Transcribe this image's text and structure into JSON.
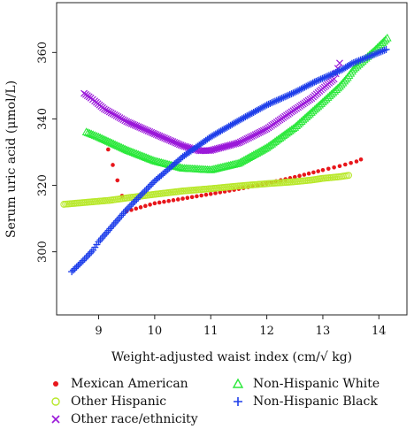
{
  "chart_data": {
    "type": "scatter",
    "xlabel": "Weight-adjusted waist index (cm/√ kg)",
    "ylabel": "Serum uric acid (μmol/L)",
    "xlim": [
      8.25,
      14.5
    ],
    "ylim": [
      281,
      375
    ],
    "x_ticks": [
      9,
      10,
      11,
      12,
      13,
      14
    ],
    "y_ticks": [
      300,
      320,
      340,
      360
    ],
    "grid": false,
    "legend_position": "bottom",
    "series": [
      {
        "name": "Mexican American",
        "color": "#e8161b",
        "marker": "dot",
        "points": [
          [
            9.17,
            330.8
          ],
          [
            9.5,
            312.2
          ],
          [
            10,
            314.6
          ],
          [
            10.5,
            316.0
          ],
          [
            11,
            317.4
          ],
          [
            11.5,
            318.9
          ],
          [
            12,
            320.6
          ],
          [
            12.5,
            322.5
          ],
          [
            13,
            324.6
          ],
          [
            13.3,
            325.8
          ],
          [
            13.6,
            327.2
          ],
          [
            13.68,
            327.8
          ]
        ]
      },
      {
        "name": "Other Hispanic",
        "color": "#b8e82a",
        "marker": "circle",
        "points": [
          [
            8.38,
            314.3
          ],
          [
            9.0,
            315.2
          ],
          [
            9.2,
            315.5
          ],
          [
            9.5,
            316.2
          ],
          [
            10,
            317.3
          ],
          [
            10.5,
            318.3
          ],
          [
            11,
            319.0
          ],
          [
            11.5,
            319.8
          ],
          [
            12,
            320.5
          ],
          [
            12.5,
            321.1
          ],
          [
            12.8,
            321.6
          ],
          [
            13.0,
            322.1
          ],
          [
            13.3,
            322.6
          ],
          [
            13.46,
            323.0
          ]
        ]
      },
      {
        "name": "Other race/ethnicity",
        "color": "#9a18d9",
        "marker": "x",
        "points": [
          [
            8.74,
            347.7
          ],
          [
            8.86,
            346.3
          ],
          [
            8.93,
            345.4
          ],
          [
            9.1,
            343.0
          ],
          [
            9.5,
            339.2
          ],
          [
            10,
            335.5
          ],
          [
            10.5,
            331.9
          ],
          [
            10.8,
            330.4
          ],
          [
            11,
            330.5
          ],
          [
            11.5,
            332.8
          ],
          [
            12,
            337.0
          ],
          [
            12.5,
            342.8
          ],
          [
            12.8,
            346.2
          ],
          [
            13.0,
            349.2
          ],
          [
            13.2,
            352.0
          ],
          [
            13.3,
            356.8
          ]
        ]
      },
      {
        "name": "Non-Hispanic White",
        "color": "#2ae83a",
        "marker": "triangle",
        "points": [
          [
            8.78,
            336.0
          ],
          [
            8.9,
            335.2
          ],
          [
            9.0,
            334.5
          ],
          [
            9.5,
            330.6
          ],
          [
            10,
            327.3
          ],
          [
            10.5,
            325.1
          ],
          [
            11,
            324.6
          ],
          [
            11.5,
            326.6
          ],
          [
            12,
            331.3
          ],
          [
            12.5,
            337.4
          ],
          [
            13,
            345.0
          ],
          [
            13.3,
            349.7
          ],
          [
            13.44,
            352.4
          ],
          [
            13.55,
            354.9
          ],
          [
            13.8,
            358.7
          ],
          [
            13.92,
            360.5
          ],
          [
            14.12,
            363.8
          ],
          [
            14.15,
            364.3
          ]
        ]
      },
      {
        "name": "Non-Hispanic Black",
        "color": "#1f3fea",
        "marker": "plus",
        "points": [
          [
            8.52,
            294.0
          ],
          [
            8.75,
            297.8
          ],
          [
            8.9,
            300.5
          ],
          [
            9.0,
            303.0
          ],
          [
            9.5,
            312.7
          ],
          [
            10,
            321.3
          ],
          [
            10.5,
            328.6
          ],
          [
            11,
            334.6
          ],
          [
            11.5,
            339.5
          ],
          [
            12,
            344.2
          ],
          [
            12.5,
            348.0
          ],
          [
            12.85,
            351.1
          ],
          [
            13.05,
            352.6
          ],
          [
            13.35,
            354.9
          ],
          [
            13.52,
            356.7
          ],
          [
            14.13,
            360.9
          ]
        ]
      }
    ]
  }
}
